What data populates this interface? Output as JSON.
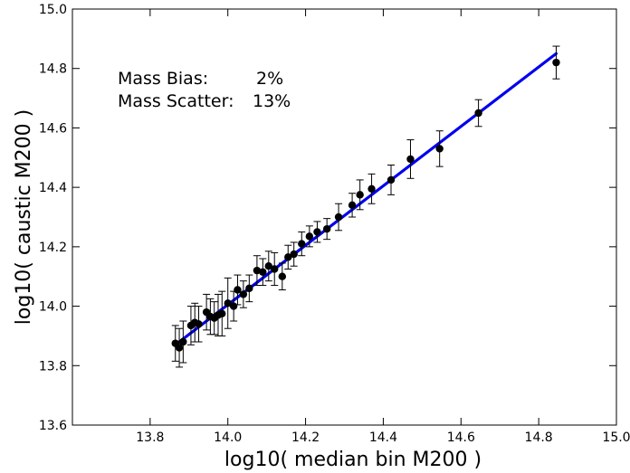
{
  "chart_data": {
    "type": "scatter",
    "xlabel": "log10( median bin M200 )",
    "ylabel": "log10( caustic M200 )",
    "xlim": [
      13.6,
      15.0
    ],
    "ylim": [
      13.6,
      15.0
    ],
    "xticks": [
      13.8,
      14.0,
      14.2,
      14.4,
      14.6,
      14.8,
      15.0
    ],
    "yticks": [
      13.6,
      13.8,
      14.0,
      14.2,
      14.4,
      14.6,
      14.8,
      15.0
    ],
    "xtick_labels": [
      "13.8",
      "14.0",
      "14.2",
      "14.4",
      "14.6",
      "14.8",
      "15.0"
    ],
    "ytick_labels": [
      "13.6",
      "13.8",
      "14.0",
      "14.2",
      "14.4",
      "14.6",
      "14.8",
      "15.0"
    ],
    "grid": false,
    "annotation": {
      "line1_label": "Mass Bias:",
      "line1_value": "2%",
      "line2_label": "Mass Scatter:",
      "line2_value": "13%"
    },
    "fit_line": {
      "color": "#0000ee",
      "points": [
        [
          13.865,
          13.87
        ],
        [
          14.845,
          14.85
        ]
      ]
    },
    "marker_color": "#000000",
    "series": [
      {
        "x": [
          13.865,
          13.875,
          13.885,
          13.905,
          13.915,
          13.925,
          13.945,
          13.955,
          13.965,
          13.975,
          13.985,
          14.0,
          14.015,
          14.025,
          14.04,
          14.055,
          14.075,
          14.09,
          14.105,
          14.12,
          14.14,
          14.155,
          14.17,
          14.19,
          14.21,
          14.23,
          14.255,
          14.285,
          14.32,
          14.34,
          14.37,
          14.42,
          14.47,
          14.545,
          14.645,
          14.845
        ],
        "y": [
          13.875,
          13.86,
          13.88,
          13.935,
          13.945,
          13.94,
          13.98,
          13.965,
          13.96,
          13.97,
          13.975,
          14.01,
          14.0,
          14.055,
          14.04,
          14.06,
          14.12,
          14.115,
          14.135,
          14.125,
          14.1,
          14.165,
          14.175,
          14.21,
          14.235,
          14.25,
          14.26,
          14.3,
          14.34,
          14.375,
          14.395,
          14.425,
          14.495,
          14.53,
          14.65,
          14.82
        ],
        "err": [
          0.06,
          0.065,
          0.07,
          0.065,
          0.065,
          0.06,
          0.06,
          0.06,
          0.055,
          0.07,
          0.075,
          0.085,
          0.05,
          0.05,
          0.045,
          0.045,
          0.05,
          0.045,
          0.05,
          0.055,
          0.045,
          0.04,
          0.04,
          0.04,
          0.035,
          0.035,
          0.035,
          0.045,
          0.04,
          0.05,
          0.05,
          0.05,
          0.065,
          0.06,
          0.045,
          0.055
        ]
      }
    ]
  }
}
